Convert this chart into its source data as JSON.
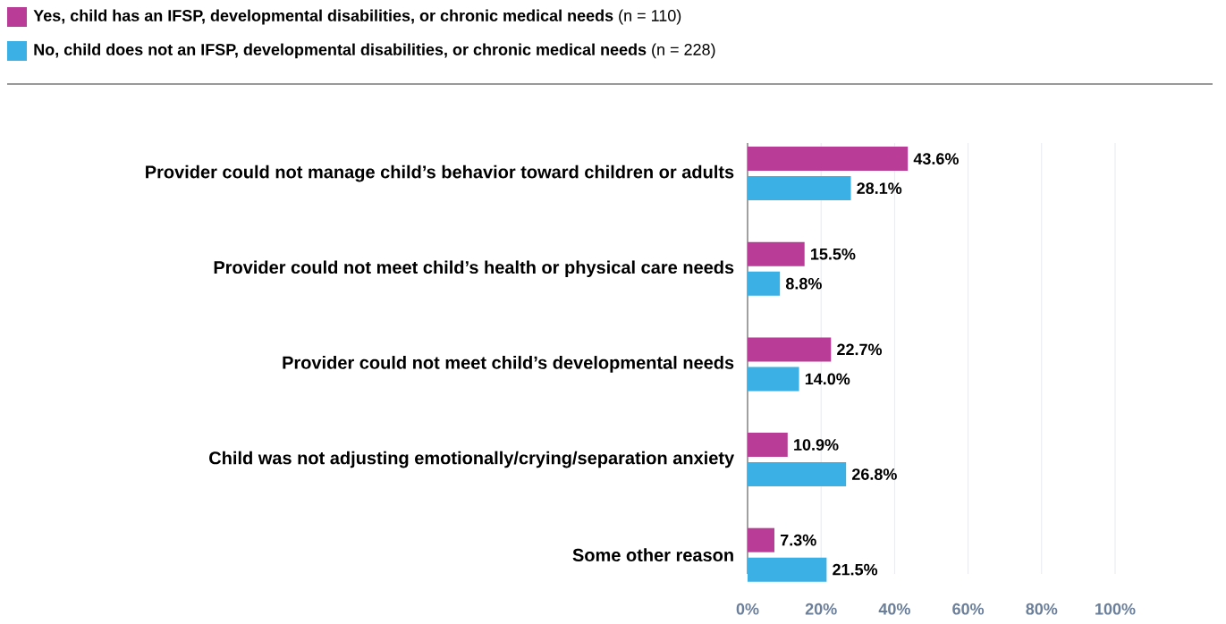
{
  "chart_data": {
    "type": "bar",
    "orientation": "horizontal",
    "legend": "top left",
    "grid": "x",
    "categories": [
      "Provider could not manage child’s behavior toward children or adults",
      "Provider could not meet child’s health or physical care needs",
      "Provider could not meet child’s developmental needs",
      "Child was not adjusting emotionally/crying/separation anxiety",
      "Some other reason"
    ],
    "series": [
      {
        "name": "**Yes, child has an IFSP, developmental disabilities, or chronic medical needs** (n = 110)",
        "color": "#b93d96",
        "values": [
          43.6,
          15.5,
          22.7,
          10.9,
          7.3
        ],
        "value_labels": [
          "43.6%",
          "15.5%",
          "22.7%",
          "10.9%",
          "7.3%"
        ]
      },
      {
        "name": "**No, child does not an IFSP, developmental disabilities, or chronic medical needs** (n = 228)",
        "color": "#3ab0e4",
        "values": [
          28.1,
          8.8,
          14.0,
          26.8,
          21.5
        ],
        "value_labels": [
          "28.1%",
          "8.8%",
          "14.0%",
          "26.8%",
          "21.5%"
        ]
      }
    ],
    "xlim": [
      0,
      100
    ],
    "xticks": [
      {
        "value": 0,
        "label": "0%"
      },
      {
        "value": 20,
        "label": "20%"
      },
      {
        "value": 40,
        "label": "40%"
      },
      {
        "value": 60,
        "label": "60%"
      },
      {
        "value": 80,
        "label": "80%"
      },
      {
        "value": 100,
        "label": "100%"
      }
    ]
  }
}
